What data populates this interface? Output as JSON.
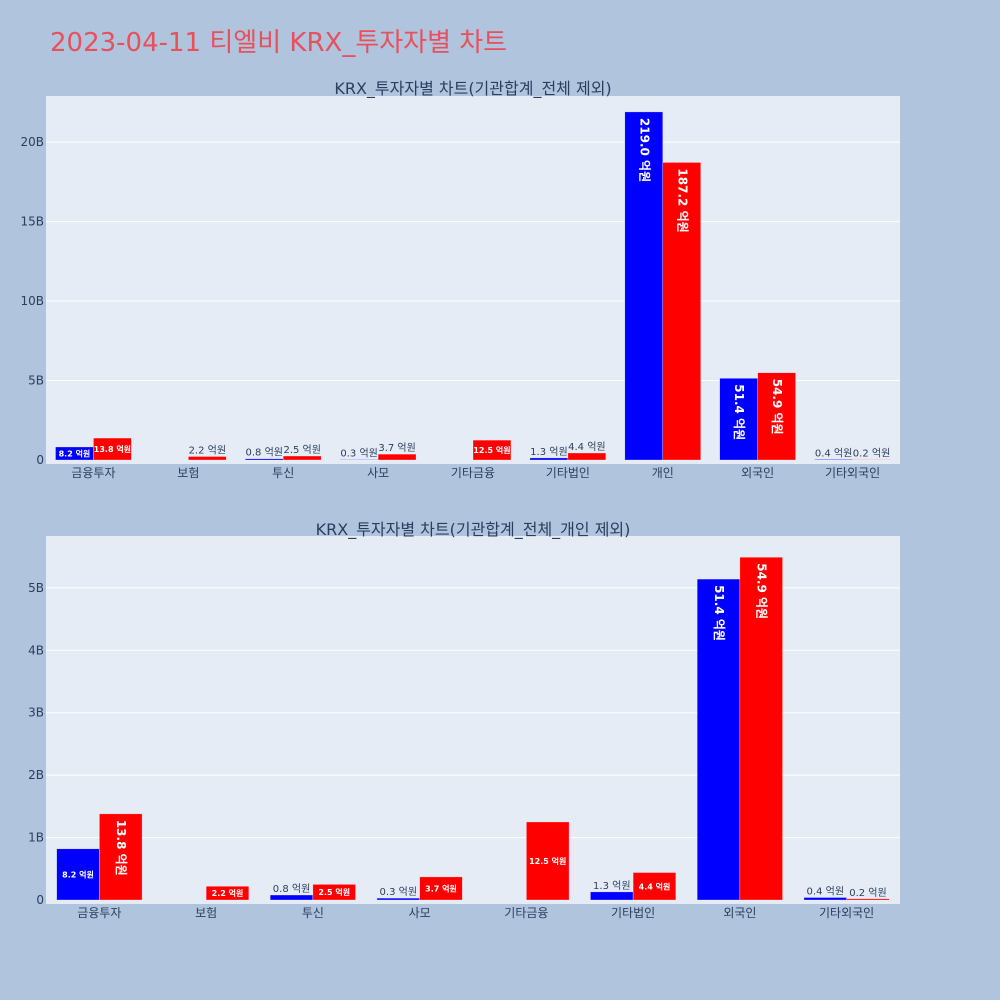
{
  "page_title": "2023-04-11 티엘비 KRX_투자자별 차트",
  "colors": {
    "buy": "#0000ff",
    "sell": "#ff0000",
    "plot_bg": "#e5ecf6",
    "page_bg": "#b0c4de",
    "title": "#e8505b"
  },
  "chart_data": [
    {
      "type": "bar",
      "title": "KRX_투자자별 차트(기관합계_전체 제외)",
      "categories": [
        "금융투자",
        "보험",
        "투신",
        "사모",
        "기타금융",
        "기타법인",
        "개인",
        "외국인",
        "기타외국인"
      ],
      "series": [
        {
          "values": [
            0.82,
            0,
            0.08,
            0.03,
            0,
            0.13,
            21.9,
            5.14,
            0.04
          ],
          "labels": [
            "8.2 억원",
            "",
            "0.8 억원",
            "0.3 억원",
            "",
            "1.3 억원",
            "219.0 억원",
            "51.4 억원",
            "0.4 억원"
          ]
        },
        {
          "values": [
            1.38,
            0.22,
            0.25,
            0.37,
            1.25,
            0.44,
            18.72,
            5.49,
            0.02
          ],
          "labels": [
            "13.8 억원",
            "2.2 억원",
            "2.5 억원",
            "3.7 억원",
            "12.5 억원",
            "4.4 억원",
            "187.2 억원",
            "54.9 억원",
            "0.2 억원"
          ]
        }
      ],
      "yticks": [
        0,
        5,
        10,
        15,
        20
      ],
      "ytick_labels": [
        "0",
        "5B",
        "10B",
        "15B",
        "20B"
      ],
      "ylim": [
        0,
        22.9
      ],
      "grid": true
    },
    {
      "type": "bar",
      "title": "KRX_투자자별 차트(기관합계_전체_개인 제외)",
      "categories": [
        "금융투자",
        "보험",
        "투신",
        "사모",
        "기타금융",
        "기타법인",
        "외국인",
        "기타외국인"
      ],
      "series": [
        {
          "values": [
            0.82,
            0,
            0.08,
            0.03,
            0,
            0.13,
            5.14,
            0.04
          ],
          "labels": [
            "8.2 억원",
            "",
            "0.8 억원",
            "0.3 억원",
            "",
            "1.3 억원",
            "51.4 억원",
            "0.4 억원"
          ]
        },
        {
          "values": [
            1.38,
            0.22,
            0.25,
            0.37,
            1.25,
            0.44,
            5.49,
            0.02
          ],
          "labels": [
            "13.8 억원",
            "2.2 억원",
            "2.5 억원",
            "3.7 억원",
            "12.5 억원",
            "4.4 억원",
            "54.9 억원",
            "0.2 억원"
          ]
        }
      ],
      "yticks": [
        0,
        1,
        2,
        3,
        4,
        5
      ],
      "ytick_labels": [
        "0",
        "1B",
        "2B",
        "3B",
        "4B",
        "5B"
      ],
      "ylim": [
        0,
        5.83
      ],
      "grid": true
    }
  ]
}
